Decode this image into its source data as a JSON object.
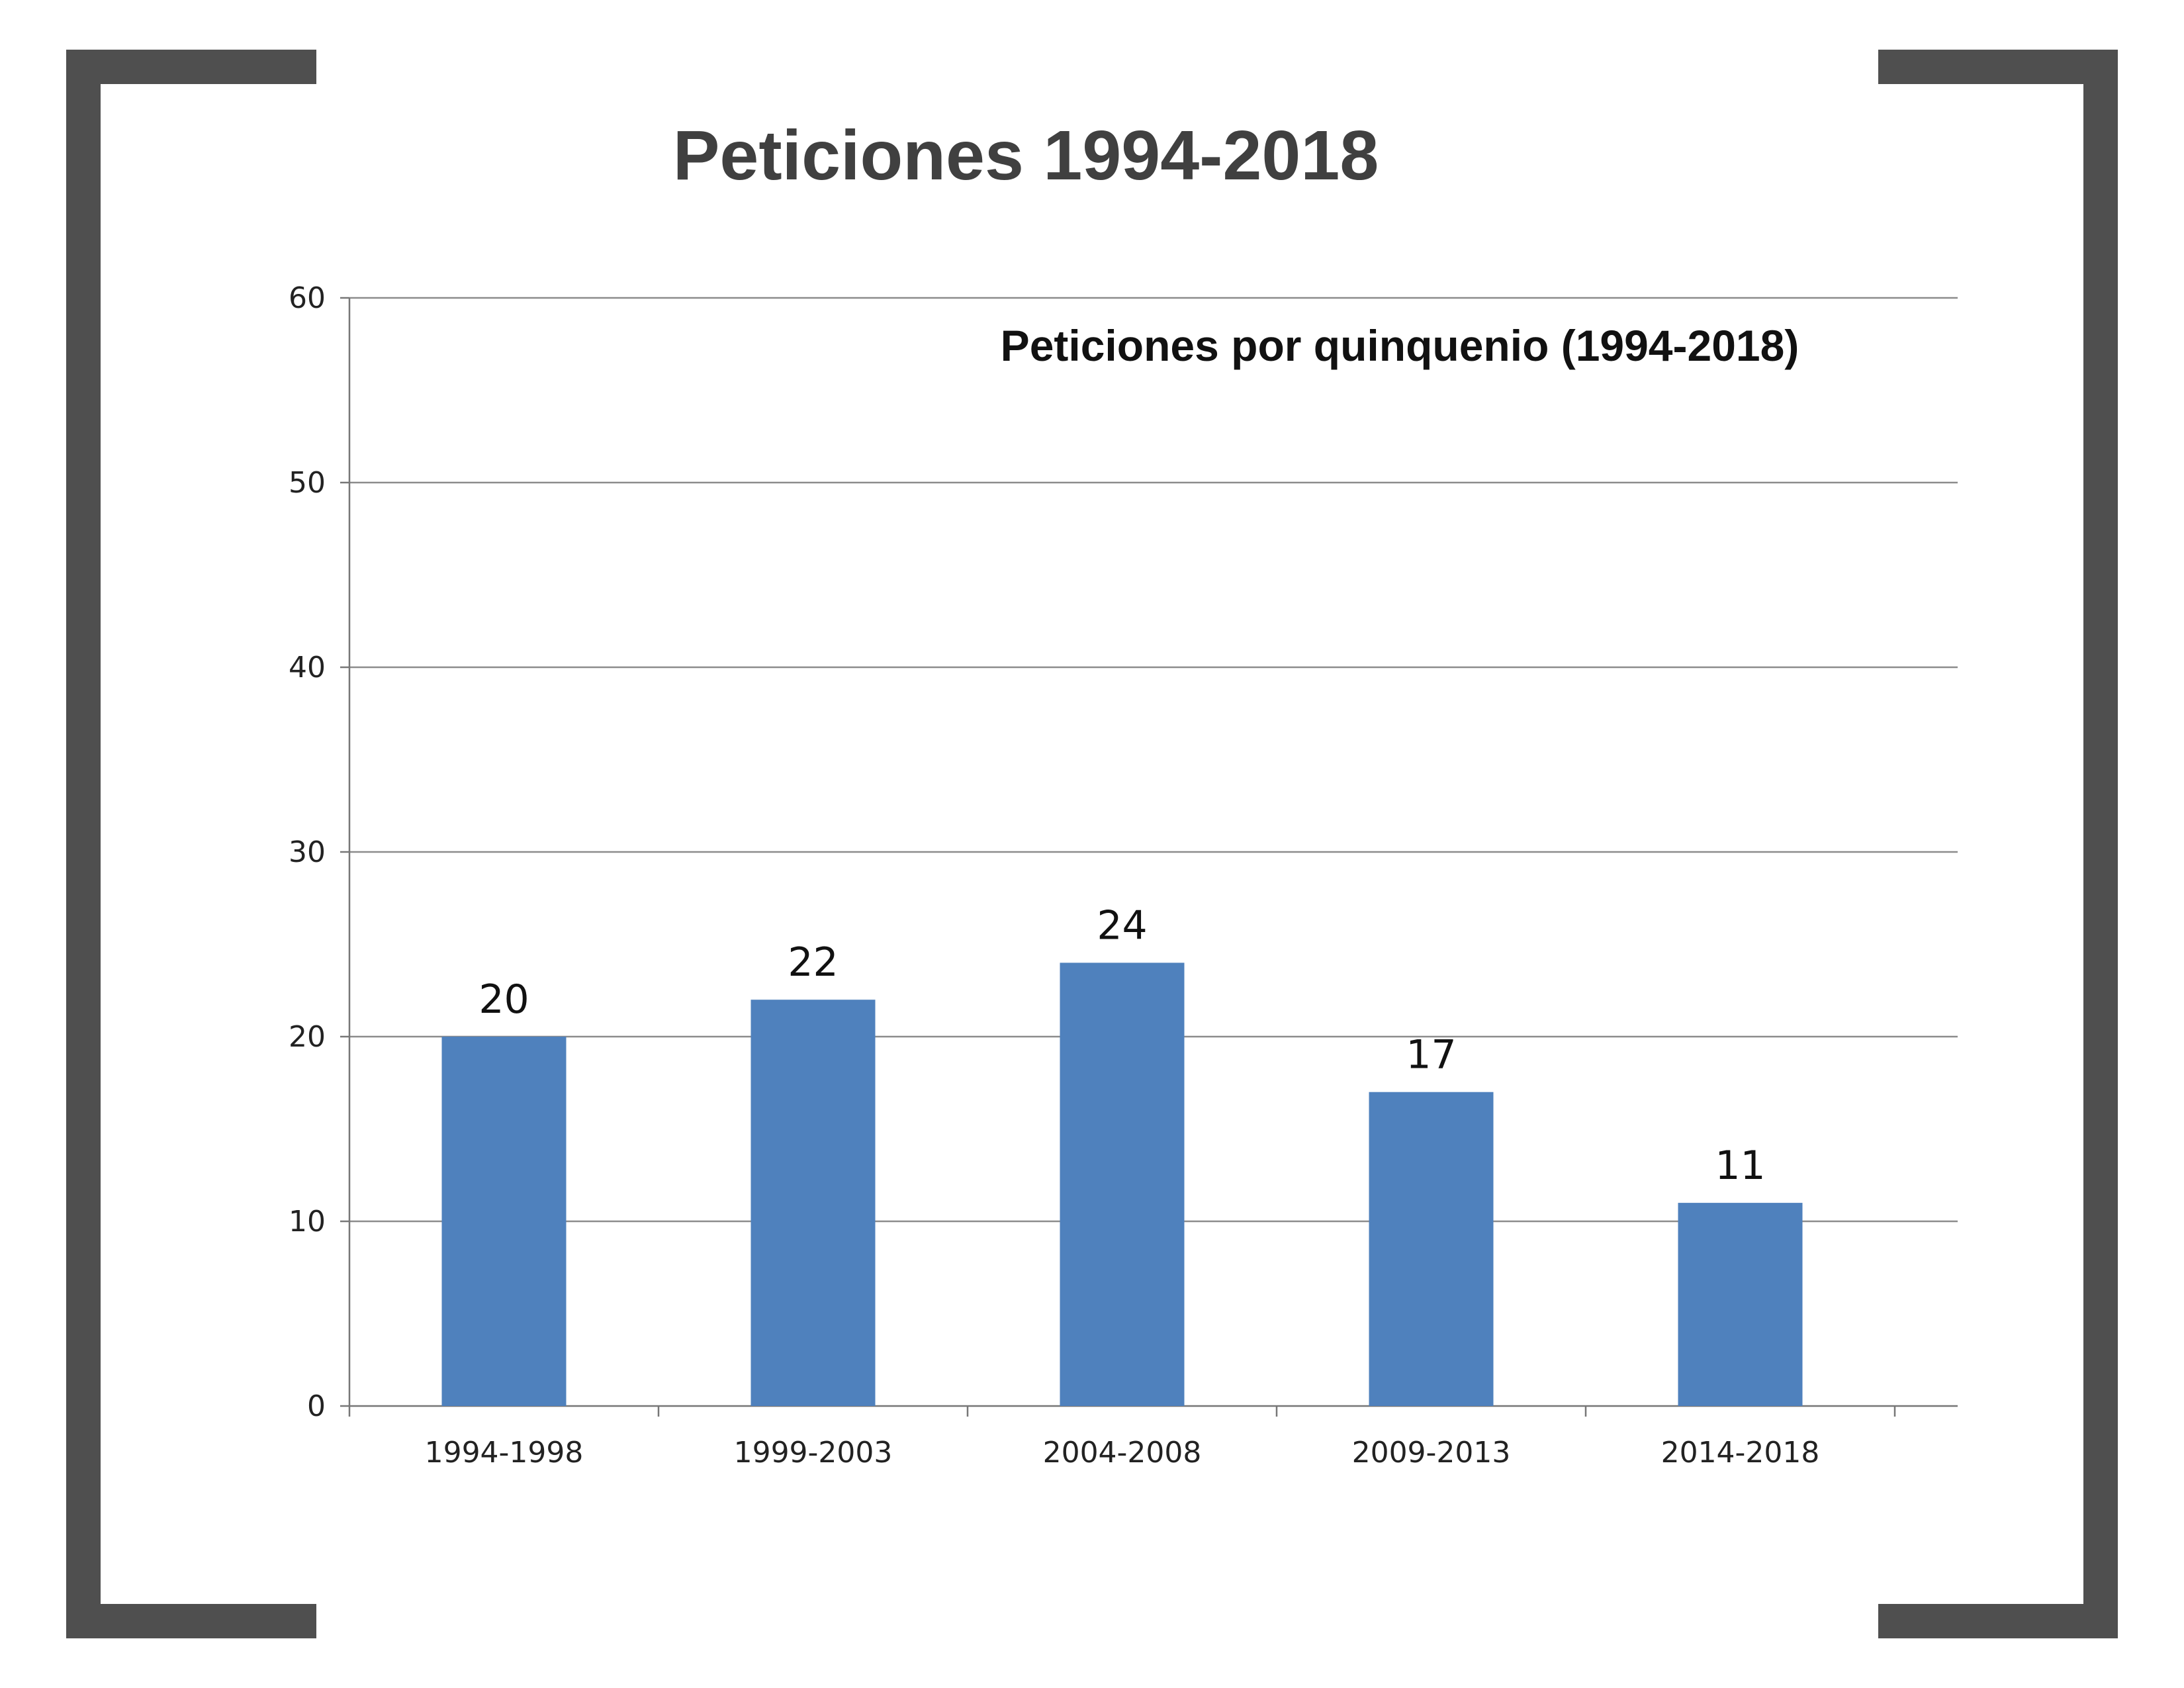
{
  "page": {
    "title": "Peticiones 1994-2018"
  },
  "chart_data": {
    "type": "bar",
    "title": "Peticiones por quinquenio (1994-2018)",
    "xlabel": "",
    "ylabel": "",
    "categories": [
      "1994-1998",
      "1999-2003",
      "2004-2008",
      "2009-2013",
      "2014-2018"
    ],
    "values": [
      20,
      22,
      24,
      17,
      11
    ],
    "ylim": [
      0,
      60
    ],
    "yticks": [
      0,
      10,
      20,
      30,
      40,
      50,
      60
    ],
    "grid": true,
    "legend": "none",
    "bar_color": "#4f81bd",
    "data_labels": [
      "20",
      "22",
      "24",
      "17",
      "11"
    ]
  },
  "colors": {
    "frame": "#4f4f4f",
    "title": "#404040",
    "grid": "#8c8c8c",
    "bar": "#4f81bd"
  }
}
